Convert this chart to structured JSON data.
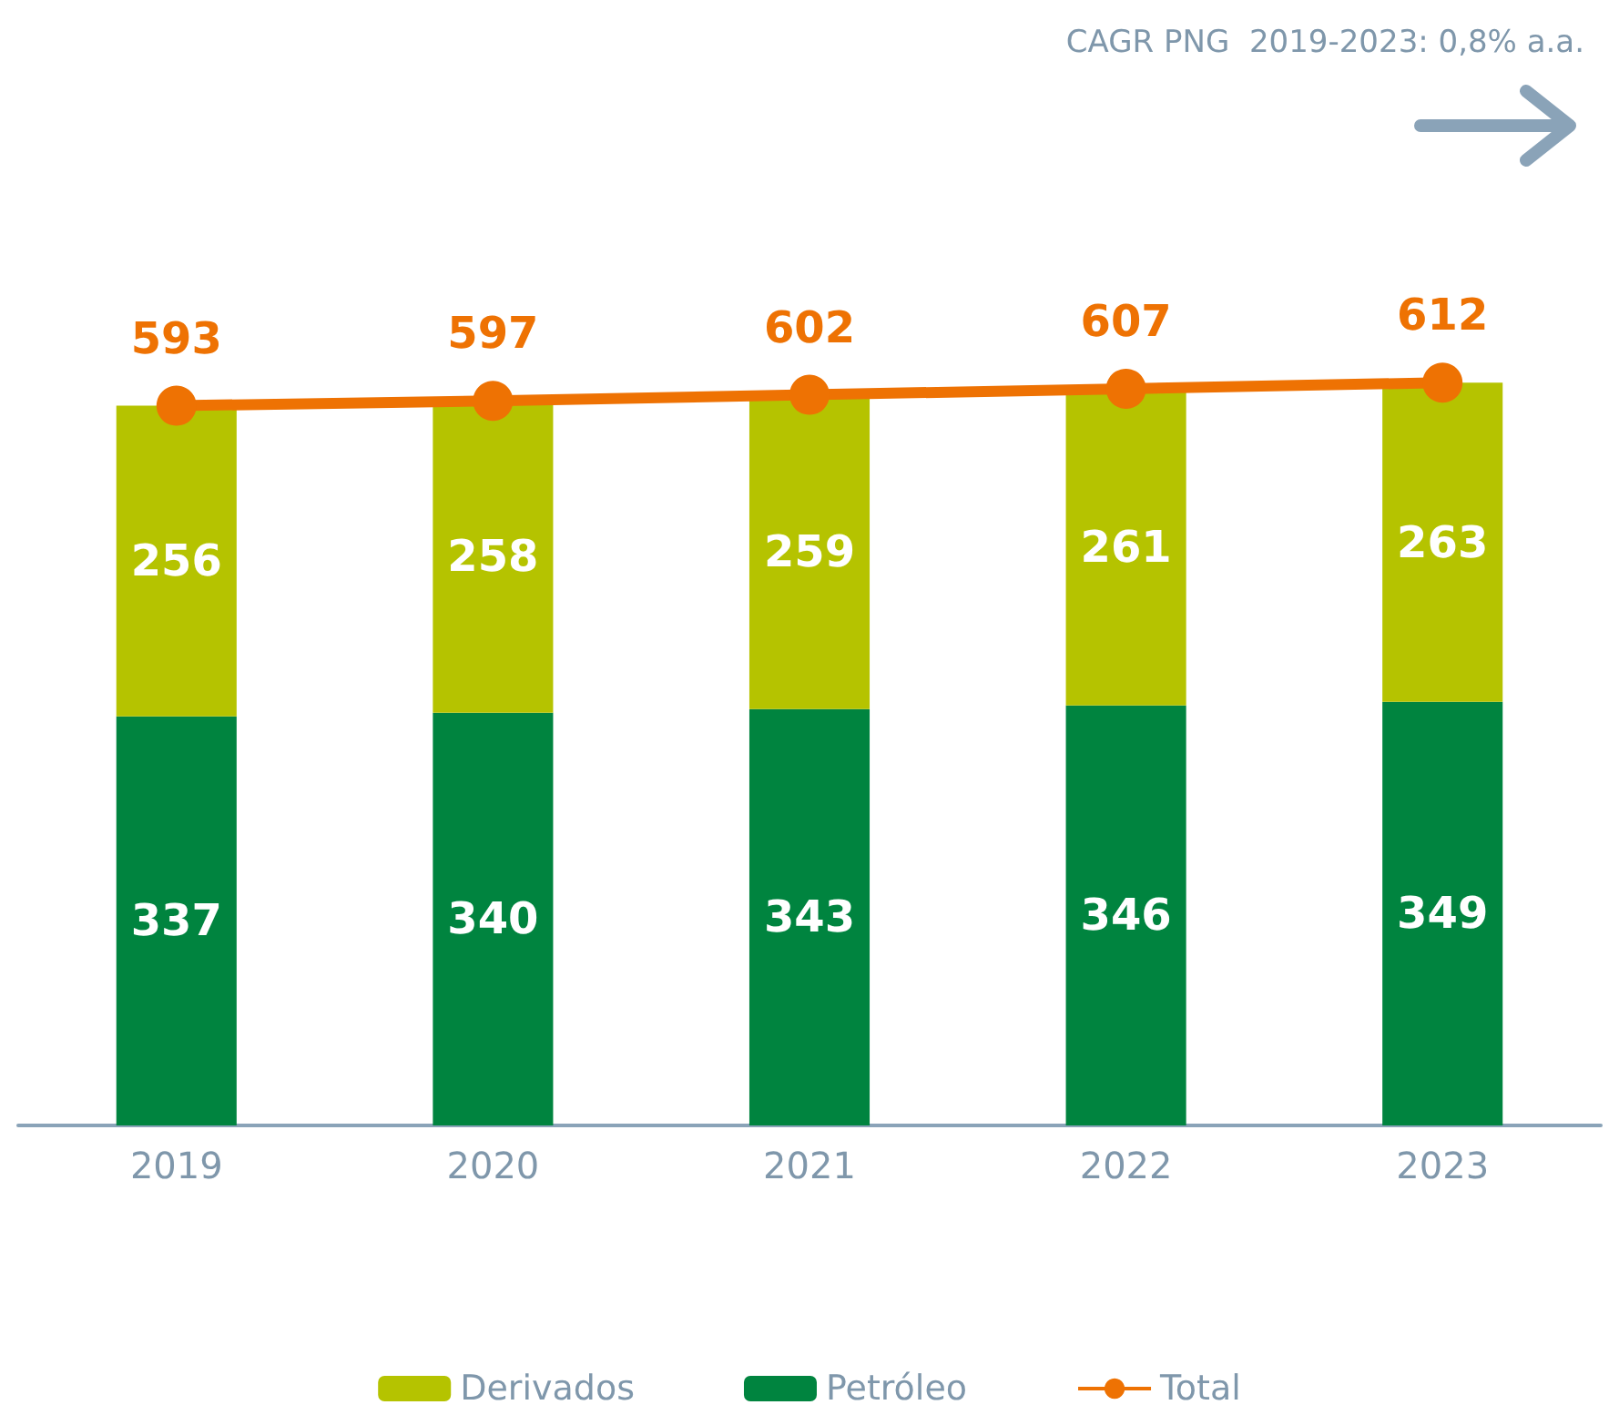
{
  "chart_data": {
    "type": "bar",
    "stacked": true,
    "categories": [
      "2019",
      "2020",
      "2021",
      "2022",
      "2023"
    ],
    "series": [
      {
        "name": "Petróleo",
        "color": "#00843f",
        "values": [
          337,
          340,
          343,
          346,
          349
        ]
      },
      {
        "name": "Derivados",
        "color": "#b5c300",
        "values": [
          256,
          258,
          259,
          261,
          263
        ]
      },
      {
        "name": "Total",
        "type": "line",
        "color": "#ee7203",
        "values": [
          593,
          597,
          602,
          607,
          612
        ]
      }
    ],
    "data_labels": true,
    "legend": "bottom",
    "marker": "circle",
    "grid": false,
    "annotations": [
      "CAGR PNG  2019-2023: 0,8% a.a."
    ]
  }
}
